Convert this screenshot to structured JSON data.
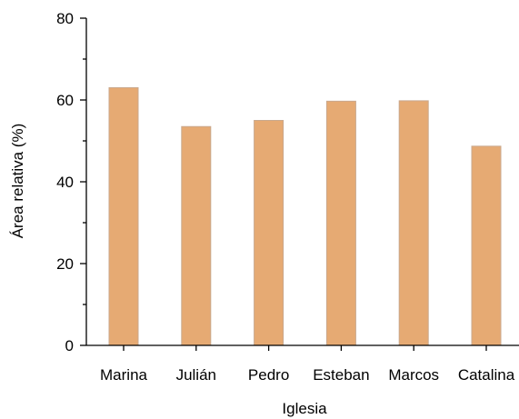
{
  "chart_data": {
    "type": "bar",
    "title": "",
    "xlabel": "Iglesia",
    "ylabel": "Área relativa (%)",
    "categories": [
      "Marina",
      "Julián",
      "Pedro",
      "Esteban",
      "Marcos",
      "Catalina"
    ],
    "values": [
      63.0,
      53.5,
      55.0,
      59.7,
      59.8,
      48.7
    ],
    "ylim": [
      0,
      80
    ],
    "yticks": [
      "0",
      "20",
      "40",
      "60",
      "80"
    ],
    "grid": false,
    "legend": "none",
    "colors": {
      "bar": "#e6aa73",
      "axis": "#000000"
    }
  }
}
